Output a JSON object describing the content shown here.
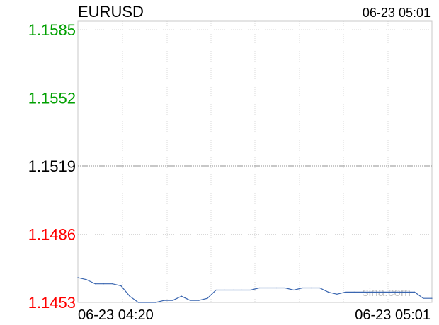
{
  "chart_data": {
    "type": "line",
    "title": "EURUSD",
    "timestamp": "06-23 05:01",
    "watermark": "sina.com",
    "ylim": [
      1.1453,
      1.1585
    ],
    "reference_price": 1.1519,
    "y_ticks": [
      {
        "label": "1.1585",
        "value": 1.1585,
        "color": "#00a000"
      },
      {
        "label": "1.1552",
        "value": 1.1552,
        "color": "#00a000"
      },
      {
        "label": "1.1519",
        "value": 1.1519,
        "color": "#000000"
      },
      {
        "label": "1.1486",
        "value": 1.1486,
        "color": "#ff0000"
      },
      {
        "label": "1.1453",
        "value": 1.1453,
        "color": "#ff0000"
      }
    ],
    "x_tick_labels": [
      "06-23 04:20",
      "06-23 05:01"
    ],
    "xlim": [
      0,
      41
    ],
    "grid": true,
    "series_color": "#3a66b0",
    "series": [
      {
        "x": [
          0,
          1,
          2,
          3,
          4,
          5,
          6,
          7,
          8,
          9,
          10,
          11,
          12,
          13,
          14,
          15,
          16,
          17,
          18,
          19,
          20,
          21,
          22,
          23,
          24,
          25,
          26,
          27,
          28,
          29,
          30,
          31,
          32,
          33,
          34,
          35,
          36,
          37,
          38,
          39,
          40,
          41
        ],
        "values": [
          1.1465,
          1.1464,
          1.1462,
          1.1462,
          1.1462,
          1.1461,
          1.1456,
          1.1453,
          1.1453,
          1.1453,
          1.1454,
          1.1454,
          1.1456,
          1.1454,
          1.1454,
          1.1455,
          1.1459,
          1.1459,
          1.1459,
          1.1459,
          1.1459,
          1.146,
          1.146,
          1.146,
          1.146,
          1.1459,
          1.146,
          1.146,
          1.146,
          1.1458,
          1.1457,
          1.1458,
          1.1458,
          1.1458,
          1.1458,
          1.1458,
          1.1458,
          1.1458,
          1.1458,
          1.1458,
          1.1455,
          1.1455
        ]
      }
    ]
  }
}
